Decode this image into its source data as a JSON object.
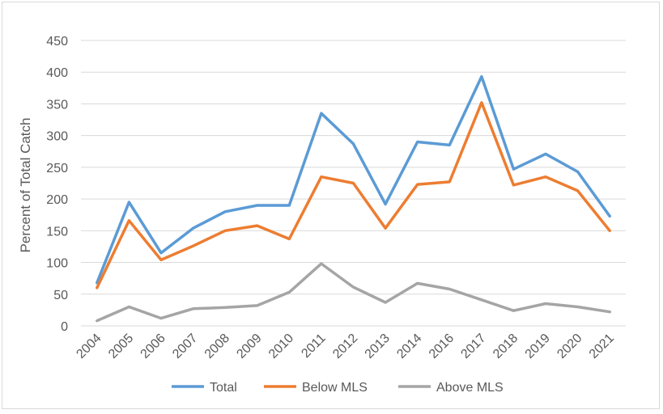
{
  "chart_data": {
    "type": "line",
    "title": "",
    "xlabel": "",
    "ylabel": "Percent of Total Catch",
    "ylim": [
      0,
      450
    ],
    "yticks": [
      0,
      50,
      100,
      150,
      200,
      250,
      300,
      350,
      400,
      450
    ],
    "grid": true,
    "legend_position": "bottom",
    "categories": [
      "2004",
      "2005",
      "2006",
      "2007",
      "2008",
      "2009",
      "2010",
      "2011",
      "2012",
      "2013",
      "2014",
      "2016",
      "2017",
      "2018",
      "2019",
      "2020",
      "2021"
    ],
    "series": [
      {
        "name": "Total",
        "color": "#5b9bd5",
        "values": [
          68,
          195,
          115,
          154,
          180,
          190,
          190,
          335,
          287,
          192,
          290,
          285,
          393,
          247,
          271,
          243,
          173
        ]
      },
      {
        "name": "Below MLS",
        "color": "#ed7d31",
        "values": [
          60,
          166,
          104,
          126,
          150,
          158,
          137,
          235,
          225,
          154,
          223,
          227,
          352,
          222,
          235,
          213,
          150
        ]
      },
      {
        "name": "Above MLS",
        "color": "#a5a5a5",
        "values": [
          8,
          30,
          12,
          27,
          29,
          32,
          53,
          98,
          61,
          37,
          67,
          58,
          41,
          24,
          35,
          30,
          22
        ]
      }
    ]
  }
}
